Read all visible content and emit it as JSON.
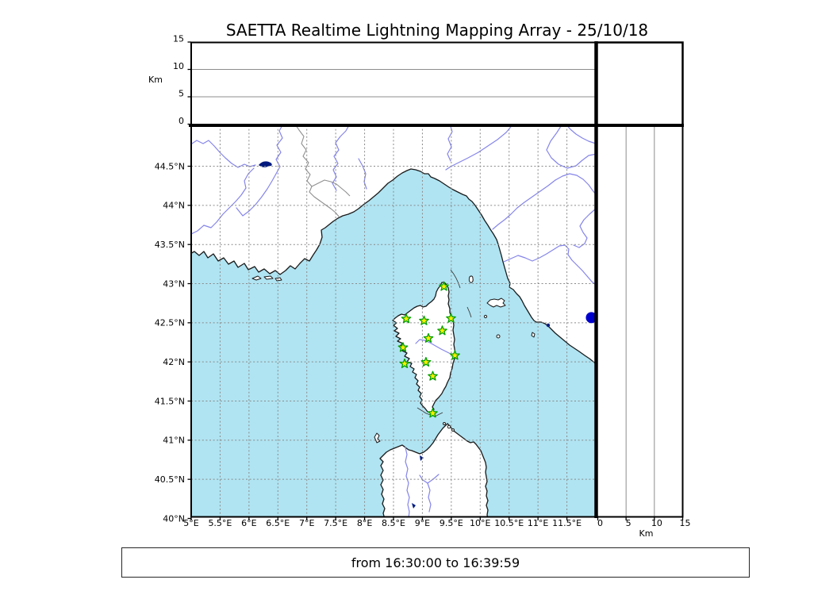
{
  "title": "SAETTA Realtime Lightning Mapping Array - 25/10/18",
  "footer": "from 16:30:00 to 16:39:59",
  "axes": {
    "km_axis_label": "Km",
    "km_ticks": [
      {
        "v": 0,
        "label": "0"
      },
      {
        "v": 5,
        "label": "5"
      },
      {
        "v": 10,
        "label": "10"
      },
      {
        "v": 15,
        "label": "15"
      }
    ],
    "km_gridlines": [
      5,
      10
    ],
    "lon_ticks": [
      {
        "v": 5,
        "label": "5°E"
      },
      {
        "v": 5.5,
        "label": "5.5°E"
      },
      {
        "v": 6,
        "label": "6°E"
      },
      {
        "v": 6.5,
        "label": "6.5°E"
      },
      {
        "v": 7,
        "label": "7°E"
      },
      {
        "v": 7.5,
        "label": "7.5°E"
      },
      {
        "v": 8,
        "label": "8°E"
      },
      {
        "v": 8.5,
        "label": "8.5°E"
      },
      {
        "v": 9,
        "label": "9°E"
      },
      {
        "v": 9.5,
        "label": "9.5°E"
      },
      {
        "v": 10,
        "label": "10°E"
      },
      {
        "v": 10.5,
        "label": "10.5°E"
      },
      {
        "v": 11,
        "label": "11°E"
      },
      {
        "v": 11.5,
        "label": "11.5°E"
      }
    ],
    "lat_ticks": [
      {
        "v": 40,
        "label": "40°N"
      },
      {
        "v": 40.5,
        "label": "40.5°N"
      },
      {
        "v": 41,
        "label": "41°N"
      },
      {
        "v": 41.5,
        "label": "41.5°N"
      },
      {
        "v": 42,
        "label": "42°N"
      },
      {
        "v": 42.5,
        "label": "42.5°N"
      },
      {
        "v": 43,
        "label": "43°N"
      },
      {
        "v": 43.5,
        "label": "43.5°N"
      },
      {
        "v": 44,
        "label": "44°N"
      },
      {
        "v": 44.5,
        "label": "44.5°N"
      }
    ]
  },
  "chart_data": {
    "type": "scatter",
    "title": "SAETTA Realtime Lightning Mapping Array - 25/10/18",
    "time_window": {
      "from": "16:30:00",
      "to": "16:39:59"
    },
    "map_panel": {
      "lon_range": [
        5,
        11.99
      ],
      "lat_range": [
        40,
        45.03
      ],
      "grid": "dashed 0.5 degree",
      "region": "Corsica, Ligurian and Tyrrhenian Sea, SE France, NW Italy, N Sardinia"
    },
    "altitude_panels": {
      "top_panel": "altitude (Km) vs longitude, range 0-15 Km, no sources plotted",
      "right_panel": "altitude (Km) vs latitude, range 0-15 Km, no sources plotted",
      "km_range": [
        0,
        15
      ]
    },
    "stations_lon_lat": [
      [
        9.372,
        42.963
      ],
      [
        8.72,
        42.551
      ],
      [
        9.028,
        42.525
      ],
      [
        9.495,
        42.556
      ],
      [
        9.344,
        42.398
      ],
      [
        9.104,
        42.301
      ],
      [
        8.665,
        42.184
      ],
      [
        9.563,
        42.082
      ],
      [
        8.692,
        41.976
      ],
      [
        9.062,
        41.996
      ],
      [
        9.179,
        41.817
      ],
      [
        9.179,
        41.344
      ]
    ],
    "stations_marker": "yellow star with green edge (LMA station)",
    "detections_lon_lat": [
      [
        11.924,
        42.566
      ]
    ],
    "detections_marker": "blue filled circle at map east edge"
  },
  "colors": {
    "sea": "#b0e4f2",
    "land": "#ffffff",
    "river": "#8585ea",
    "star_fill": "#ffee00",
    "star_edge": "#00a000",
    "detection": "#0000cc",
    "lake": "#001a80",
    "grid": "#8a8a8a"
  }
}
